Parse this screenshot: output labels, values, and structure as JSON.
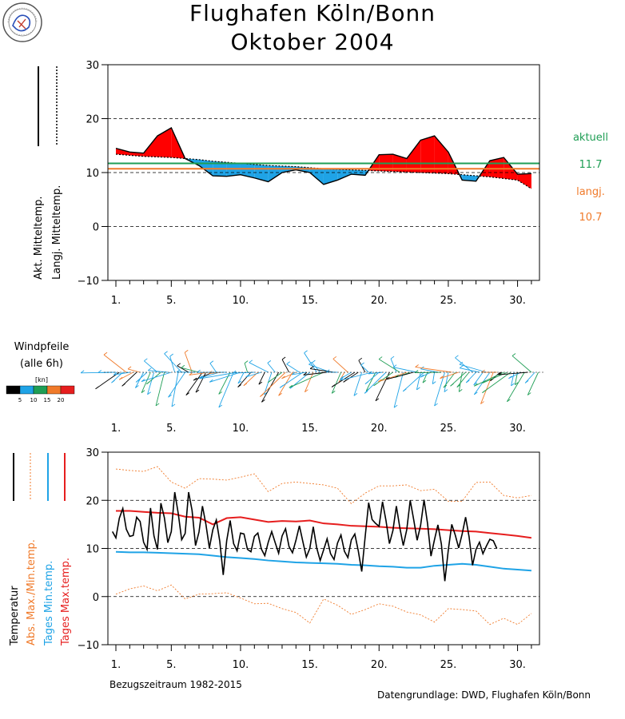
{
  "header": {
    "title_line1": "Flughafen Köln/Bonn",
    "title_line2": "Oktober   2004"
  },
  "colors": {
    "above_fill": "#ff0000",
    "below_fill": "#1fa3e6",
    "aktuell_line": "#1f9e55",
    "langj_line": "#f07a2a",
    "temperature": "#000000",
    "abs_extremes": "#f07a2a",
    "tages_min": "#1fa3e6",
    "tages_max": "#e61e1e",
    "wind_scale": [
      "#000000",
      "#1fa3e6",
      "#1f9e55",
      "#f07a2a",
      "#e61e1e"
    ]
  },
  "top_panel": {
    "legend_akt": "Akt. Mitteltemp.",
    "legend_langj": "Langj. Mitteltemp.",
    "aktuell_label": "aktuell",
    "aktuell_value": "11.7",
    "langj_label": "langj.",
    "langj_value": "10.7"
  },
  "wind_panel": {
    "title_line1": "Windpfeile",
    "title_line2": "(alle 6h)",
    "unit": "[kn]",
    "scale_labels": [
      "5",
      "10",
      "15",
      "20"
    ]
  },
  "bottom_panel": {
    "legend_temperatur": "Temperatur",
    "legend_abs": "Abs. Max./Min.temp.",
    "legend_min": "Tages Min.temp.",
    "legend_max": "Tages Max.temp.",
    "reference_period": "Bezugszeitraum 1982-2015",
    "source": "Datengrundlage: DWD, Flughafen Köln/Bonn"
  },
  "chart_data": [
    {
      "type": "area",
      "ylim": [
        -10,
        30
      ],
      "yticks": [
        -10,
        0,
        10,
        20,
        30
      ],
      "xlim": [
        0.5,
        31.5
      ],
      "xtick_labels": [
        {
          "x": 1,
          "label": "1."
        },
        {
          "x": 5,
          "label": "5."
        },
        {
          "x": 10,
          "label": "10."
        },
        {
          "x": 15,
          "label": "15."
        },
        {
          "x": 20,
          "label": "20."
        },
        {
          "x": 25,
          "label": "25."
        },
        {
          "x": 30,
          "label": "30."
        }
      ],
      "grid": "dashed horizontal",
      "days": [
        1,
        2,
        3,
        4,
        5,
        6,
        7,
        8,
        9,
        10,
        11,
        12,
        13,
        14,
        15,
        16,
        17,
        18,
        19,
        20,
        21,
        22,
        23,
        24,
        25,
        26,
        27,
        28,
        29,
        30,
        31
      ],
      "series": [
        {
          "name": "Akt. Mitteltemp.",
          "values": [
            14.5,
            13.8,
            13.6,
            16.8,
            18.3,
            12.6,
            11.3,
            9.4,
            9.3,
            9.6,
            9.0,
            8.3,
            10.0,
            10.5,
            10.0,
            7.8,
            8.6,
            9.7,
            9.5,
            13.3,
            13.4,
            12.6,
            16.0,
            16.8,
            13.8,
            8.6,
            8.4,
            12.2,
            12.8,
            9.7,
            9.8
          ]
        },
        {
          "name": "Langj. Mitteltemp.",
          "values": [
            13.4,
            13.2,
            13.0,
            12.9,
            12.8,
            12.6,
            12.4,
            12.1,
            11.9,
            11.7,
            11.5,
            11.3,
            11.2,
            11.1,
            10.9,
            10.7,
            10.6,
            10.5,
            10.4,
            10.3,
            10.2,
            10.1,
            10.0,
            9.9,
            9.8,
            9.6,
            9.4,
            9.2,
            8.9,
            8.6,
            7.0
          ]
        }
      ],
      "aktuell_mean": 11.7,
      "langj_mean": 10.7
    },
    {
      "type": "line",
      "ylim": [
        -10,
        30
      ],
      "yticks": [
        -10,
        0,
        10,
        20,
        30
      ],
      "xlim": [
        0.5,
        31.5
      ],
      "xtick_labels": [
        {
          "x": 1,
          "label": "1."
        },
        {
          "x": 5,
          "label": "5."
        },
        {
          "x": 10,
          "label": "10."
        },
        {
          "x": 15,
          "label": "15."
        },
        {
          "x": 20,
          "label": "20."
        },
        {
          "x": 25,
          "label": "25."
        },
        {
          "x": 30,
          "label": "30."
        }
      ],
      "grid": "dashed horizontal",
      "temperature": {
        "name": "Temperatur",
        "x_start": 0.75,
        "step_days": 0.25,
        "values": [
          13.5,
          12.2,
          16.3,
          18.3,
          14.0,
          12.5,
          12.7,
          16.5,
          15.6,
          11.3,
          9.8,
          18.4,
          12.6,
          9.8,
          19.4,
          16.4,
          11.2,
          13.5,
          21.7,
          17.3,
          11.8,
          13.1,
          21.7,
          17.9,
          10.6,
          13.4,
          18.8,
          15.0,
          10.1,
          13.9,
          15.9,
          11.5,
          4.5,
          11.6,
          15.8,
          11.0,
          9.5,
          13.2,
          13.0,
          9.8,
          9.3,
          12.5,
          13.2,
          9.9,
          8.5,
          11.3,
          13.5,
          11.2,
          9.0,
          12.6,
          14.1,
          10.4,
          9.1,
          11.7,
          14.7,
          11.4,
          8.2,
          10.0,
          14.5,
          10.1,
          7.5,
          9.7,
          12.0,
          8.9,
          7.7,
          11.1,
          12.8,
          9.4,
          8.1,
          11.8,
          13.0,
          9.5,
          5.2,
          12.5,
          19.5,
          16.0,
          15.2,
          14.6,
          19.7,
          15.8,
          11.0,
          13.7,
          18.8,
          14.3,
          10.6,
          13.9,
          20.0,
          16.0,
          11.7,
          14.8,
          20.1,
          15.2,
          8.4,
          11.8,
          14.9,
          10.9,
          3.2,
          9.7,
          15.0,
          12.8,
          10.1,
          13.0,
          16.5,
          12.4,
          6.5,
          9.8,
          11.3,
          8.9,
          10.5,
          11.9,
          11.6,
          10.0
        ]
      },
      "series": [
        {
          "name": "Tages Max.temp.",
          "values": [
            17.8,
            17.8,
            17.6,
            17.4,
            17.3,
            16.6,
            16.4,
            15.0,
            16.3,
            16.5,
            16.0,
            15.5,
            15.7,
            15.6,
            15.8,
            15.2,
            15.0,
            14.7,
            14.6,
            14.5,
            14.3,
            14.2,
            14.1,
            14.0,
            13.8,
            13.6,
            13.5,
            13.2,
            12.9,
            12.6,
            12.2
          ]
        },
        {
          "name": "Tages Min.temp.",
          "values": [
            9.3,
            9.2,
            9.2,
            9.1,
            9.0,
            8.9,
            8.8,
            8.5,
            8.2,
            8.0,
            7.8,
            7.5,
            7.3,
            7.1,
            7.0,
            6.9,
            6.8,
            6.6,
            6.5,
            6.3,
            6.2,
            6.0,
            6.0,
            6.4,
            6.6,
            6.8,
            6.6,
            6.2,
            5.8,
            5.6,
            5.4
          ]
        },
        {
          "name": "Abs. Max.temp.",
          "values": [
            26.5,
            26.2,
            26.0,
            27.0,
            23.8,
            22.5,
            24.5,
            24.4,
            24.2,
            24.8,
            25.5,
            21.8,
            23.5,
            23.8,
            23.5,
            23.2,
            22.5,
            19.3,
            21.5,
            23.0,
            23.0,
            23.2,
            22.0,
            22.3,
            19.8,
            19.8,
            23.7,
            23.8,
            21.0,
            20.5,
            21.0
          ]
        },
        {
          "name": "Abs. Min.temp.",
          "values": [
            0.5,
            1.6,
            2.2,
            1.2,
            2.4,
            -0.5,
            0.5,
            0.6,
            0.8,
            -0.3,
            -1.5,
            -1.4,
            -2.5,
            -3.3,
            -5.5,
            -0.5,
            -1.8,
            -3.7,
            -2.7,
            -1.5,
            -2.0,
            -3.2,
            -3.8,
            -5.3,
            -2.5,
            -2.7,
            -3.0,
            -5.8,
            -4.5,
            -5.8,
            -3.5
          ]
        }
      ]
    }
  ]
}
